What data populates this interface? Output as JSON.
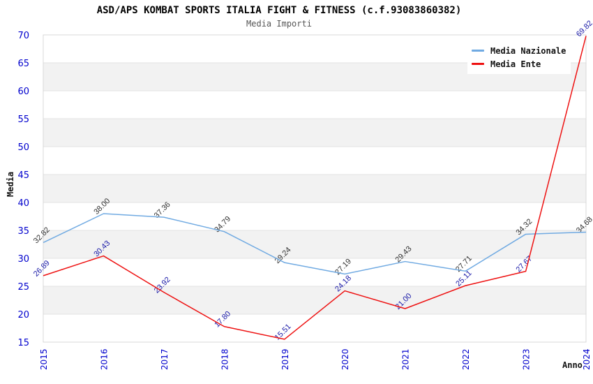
{
  "header": {
    "title": "ASD/APS KOMBAT SPORTS ITALIA FIGHT & FITNESS (c.f.93083860382)",
    "subtitle": "Media Importi"
  },
  "legend": {
    "items": [
      {
        "label": "Media Nazionale",
        "color": "#70aae2"
      },
      {
        "label": "Media Ente",
        "color": "#ee1111"
      }
    ]
  },
  "axes": {
    "y_title": "Media",
    "x_title": "Anno"
  },
  "chart_data": {
    "type": "line",
    "title": "ASD/APS KOMBAT SPORTS ITALIA FIGHT & FITNESS (c.f.93083860382)",
    "subtitle": "Media Importi",
    "xlabel": "Anno",
    "ylabel": "Media",
    "x": [
      "2015",
      "2016",
      "2017",
      "2018",
      "2019",
      "2020",
      "2021",
      "2022",
      "2023",
      "2024"
    ],
    "series": [
      {
        "name": "Media Nazionale",
        "color": "#70aae2",
        "label_color": "#333333",
        "values": [
          32.82,
          38.0,
          37.36,
          34.79,
          29.24,
          27.19,
          29.43,
          27.71,
          34.32,
          34.68
        ]
      },
      {
        "name": "Media Ente",
        "color": "#ee1111",
        "label_color": "#1a1aa8",
        "values": [
          26.89,
          30.43,
          23.92,
          17.8,
          15.51,
          24.18,
          21.0,
          25.11,
          27.67,
          69.82
        ]
      }
    ],
    "ylim": [
      15,
      70
    ],
    "ytick_step": 5,
    "grid": true,
    "legend_position": "top-right",
    "tick_color": "#0000cd",
    "grid_color": "#e3e3e3",
    "border_color": "#d8d8d8",
    "band_colors": [
      "#ffffff",
      "#f2f2f2"
    ]
  }
}
